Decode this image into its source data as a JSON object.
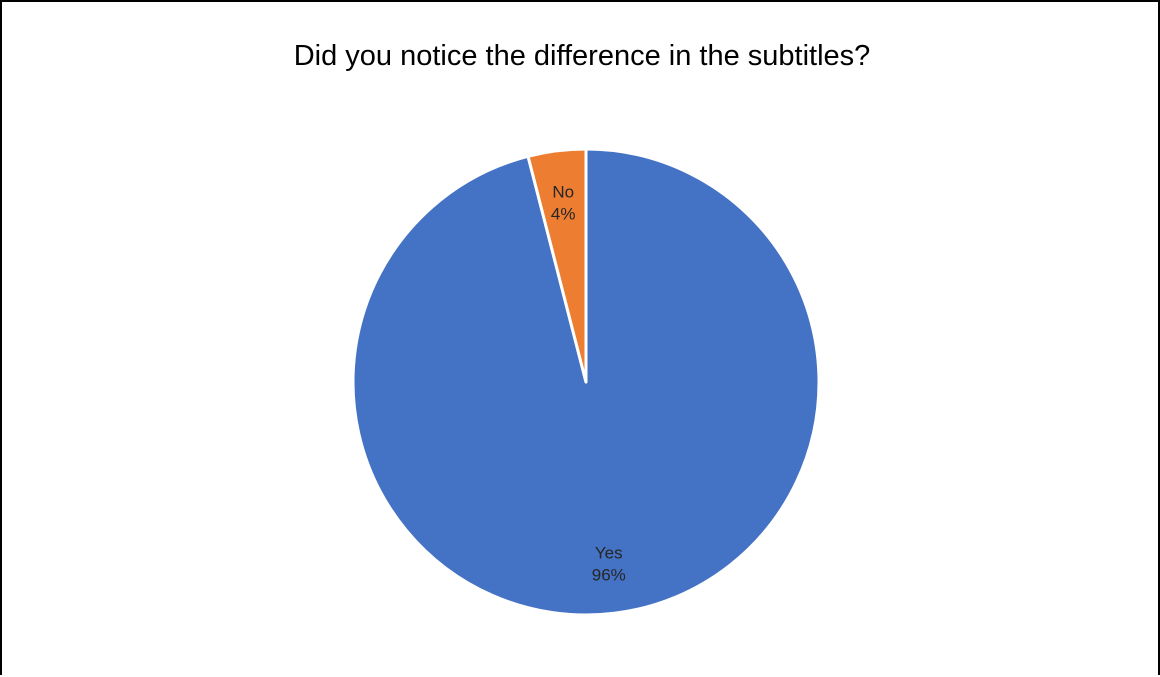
{
  "chart_data": {
    "type": "pie",
    "title": "Did you notice the difference in the subtitles?",
    "slices": [
      {
        "label": "Yes",
        "value": 96,
        "value_label": "96%",
        "color": "#4472C4"
      },
      {
        "label": "No",
        "value": 4,
        "value_label": "4%",
        "color": "#ED7D31"
      }
    ],
    "start_angle_deg": 0,
    "direction": "clockwise",
    "slice_border_color": "#FFFFFF",
    "data_labels": "inside",
    "legend": "none"
  }
}
